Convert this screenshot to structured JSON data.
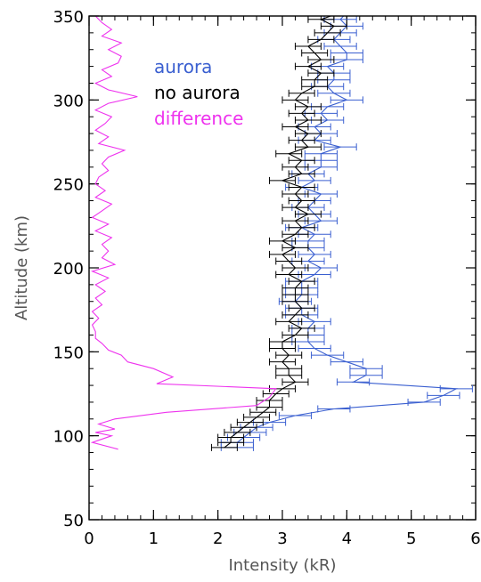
{
  "chart_data": {
    "type": "line",
    "xlabel": "Intensity (kR)",
    "ylabel": "Altitude (km)",
    "xlim": [
      0,
      6
    ],
    "ylim": [
      50,
      350
    ],
    "x_ticks": [
      0,
      1,
      2,
      3,
      4,
      5,
      6
    ],
    "y_ticks": [
      50,
      100,
      150,
      200,
      250,
      300,
      350
    ],
    "x_minor_step": 0.2,
    "y_minor_step": 10,
    "grid": false,
    "legend_position": "top-left",
    "legend": [
      {
        "label": "aurora",
        "color": "#3a5fd0"
      },
      {
        "label": "no aurora",
        "color": "#000000"
      },
      {
        "label": "difference",
        "color": "#ee33ee"
      }
    ],
    "series": [
      {
        "name": "aurora",
        "color": "#3a5fd0",
        "x_error": 0.25,
        "points": [
          [
            2.3,
            93
          ],
          [
            2.3,
            96
          ],
          [
            2.4,
            99
          ],
          [
            2.5,
            102
          ],
          [
            2.6,
            105
          ],
          [
            2.8,
            108
          ],
          [
            3.2,
            112
          ],
          [
            3.8,
            116
          ],
          [
            5.2,
            120
          ],
          [
            5.5,
            124
          ],
          [
            5.7,
            128
          ],
          [
            4.1,
            132
          ],
          [
            4.3,
            136
          ],
          [
            4.3,
            140
          ],
          [
            4.0,
            144
          ],
          [
            3.7,
            148
          ],
          [
            3.5,
            152
          ],
          [
            3.4,
            156
          ],
          [
            3.4,
            160
          ],
          [
            3.4,
            164
          ],
          [
            3.5,
            168
          ],
          [
            3.3,
            172
          ],
          [
            3.3,
            176
          ],
          [
            3.2,
            180
          ],
          [
            3.3,
            184
          ],
          [
            3.3,
            188
          ],
          [
            3.3,
            192
          ],
          [
            3.5,
            196
          ],
          [
            3.6,
            200
          ],
          [
            3.4,
            204
          ],
          [
            3.5,
            208
          ],
          [
            3.4,
            212
          ],
          [
            3.4,
            216
          ],
          [
            3.5,
            220
          ],
          [
            3.3,
            224
          ],
          [
            3.6,
            228
          ],
          [
            3.5,
            232
          ],
          [
            3.4,
            236
          ],
          [
            3.5,
            240
          ],
          [
            3.6,
            244
          ],
          [
            3.3,
            248
          ],
          [
            3.5,
            252
          ],
          [
            3.4,
            256
          ],
          [
            3.6,
            260
          ],
          [
            3.6,
            264
          ],
          [
            3.6,
            268
          ],
          [
            3.9,
            272
          ],
          [
            3.5,
            276
          ],
          [
            3.6,
            280
          ],
          [
            3.5,
            284
          ],
          [
            3.7,
            288
          ],
          [
            3.6,
            292
          ],
          [
            3.7,
            296
          ],
          [
            4.0,
            300
          ],
          [
            3.8,
            304
          ],
          [
            3.7,
            308
          ],
          [
            3.8,
            312
          ],
          [
            3.8,
            316
          ],
          [
            3.7,
            320
          ],
          [
            4.0,
            324
          ],
          [
            4.0,
            328
          ],
          [
            3.9,
            332
          ],
          [
            3.8,
            336
          ],
          [
            3.9,
            340
          ],
          [
            4.0,
            344
          ],
          [
            3.9,
            348
          ],
          [
            4.0,
            352
          ]
        ]
      },
      {
        "name": "no aurora",
        "color": "#000000",
        "x_error": 0.2,
        "points": [
          [
            2.1,
            93
          ],
          [
            2.2,
            96
          ],
          [
            2.2,
            99
          ],
          [
            2.3,
            102
          ],
          [
            2.4,
            105
          ],
          [
            2.5,
            108
          ],
          [
            2.6,
            111
          ],
          [
            2.7,
            114
          ],
          [
            2.8,
            117
          ],
          [
            2.8,
            121
          ],
          [
            2.9,
            125
          ],
          [
            3.0,
            128
          ],
          [
            3.2,
            132
          ],
          [
            3.1,
            136
          ],
          [
            3.1,
            140
          ],
          [
            3.0,
            144
          ],
          [
            3.1,
            148
          ],
          [
            3.0,
            152
          ],
          [
            3.0,
            156
          ],
          [
            3.2,
            160
          ],
          [
            3.3,
            164
          ],
          [
            3.1,
            168
          ],
          [
            3.2,
            172
          ],
          [
            3.3,
            176
          ],
          [
            3.2,
            180
          ],
          [
            3.2,
            184
          ],
          [
            3.2,
            188
          ],
          [
            3.3,
            192
          ],
          [
            3.1,
            196
          ],
          [
            3.2,
            200
          ],
          [
            3.1,
            204
          ],
          [
            3.0,
            208
          ],
          [
            3.2,
            212
          ],
          [
            3.0,
            216
          ],
          [
            3.2,
            220
          ],
          [
            3.3,
            224
          ],
          [
            3.2,
            228
          ],
          [
            3.4,
            232
          ],
          [
            3.2,
            236
          ],
          [
            3.3,
            240
          ],
          [
            3.2,
            244
          ],
          [
            3.3,
            248
          ],
          [
            3.0,
            252
          ],
          [
            3.3,
            256
          ],
          [
            3.2,
            260
          ],
          [
            3.3,
            264
          ],
          [
            3.1,
            268
          ],
          [
            3.4,
            272
          ],
          [
            3.3,
            276
          ],
          [
            3.4,
            280
          ],
          [
            3.2,
            284
          ],
          [
            3.4,
            288
          ],
          [
            3.3,
            292
          ],
          [
            3.4,
            296
          ],
          [
            3.2,
            300
          ],
          [
            3.3,
            304
          ],
          [
            3.5,
            308
          ],
          [
            3.5,
            312
          ],
          [
            3.6,
            316
          ],
          [
            3.4,
            320
          ],
          [
            3.6,
            324
          ],
          [
            3.5,
            328
          ],
          [
            3.4,
            332
          ],
          [
            3.6,
            336
          ],
          [
            3.7,
            340
          ],
          [
            3.8,
            344
          ],
          [
            3.6,
            348
          ],
          [
            3.9,
            352
          ]
        ]
      },
      {
        "name": "difference",
        "color": "#ee33ee",
        "points": [
          [
            0.45,
            92
          ],
          [
            0.05,
            96
          ],
          [
            0.35,
            100
          ],
          [
            0.1,
            102
          ],
          [
            0.4,
            104
          ],
          [
            0.15,
            107
          ],
          [
            0.4,
            110
          ],
          [
            1.2,
            114
          ],
          [
            2.6,
            118
          ],
          [
            2.8,
            123
          ],
          [
            2.9,
            128
          ],
          [
            1.05,
            131
          ],
          [
            1.3,
            135
          ],
          [
            1.0,
            140
          ],
          [
            0.6,
            144
          ],
          [
            0.5,
            148
          ],
          [
            0.3,
            151
          ],
          [
            0.2,
            155
          ],
          [
            0.1,
            158
          ],
          [
            0.1,
            162
          ],
          [
            0.05,
            166
          ],
          [
            0.15,
            170
          ],
          [
            0.05,
            174
          ],
          [
            0.2,
            178
          ],
          [
            0.1,
            182
          ],
          [
            0.25,
            186
          ],
          [
            0.1,
            190
          ],
          [
            0.3,
            194
          ],
          [
            0.05,
            198
          ],
          [
            0.4,
            202
          ],
          [
            0.2,
            206
          ],
          [
            0.3,
            210
          ],
          [
            0.2,
            214
          ],
          [
            0.35,
            218
          ],
          [
            0.1,
            222
          ],
          [
            0.3,
            226
          ],
          [
            0.05,
            230
          ],
          [
            0.2,
            234
          ],
          [
            0.35,
            238
          ],
          [
            0.1,
            242
          ],
          [
            0.25,
            246
          ],
          [
            0.1,
            250
          ],
          [
            0.15,
            254
          ],
          [
            0.3,
            258
          ],
          [
            0.2,
            262
          ],
          [
            0.3,
            266
          ],
          [
            0.55,
            270
          ],
          [
            0.15,
            274
          ],
          [
            0.3,
            278
          ],
          [
            0.1,
            282
          ],
          [
            0.25,
            286
          ],
          [
            0.35,
            290
          ],
          [
            0.1,
            294
          ],
          [
            0.3,
            298
          ],
          [
            0.75,
            302
          ],
          [
            0.3,
            306
          ],
          [
            0.1,
            310
          ],
          [
            0.35,
            314
          ],
          [
            0.2,
            318
          ],
          [
            0.45,
            322
          ],
          [
            0.5,
            326
          ],
          [
            0.3,
            330
          ],
          [
            0.5,
            334
          ],
          [
            0.2,
            338
          ],
          [
            0.35,
            342
          ],
          [
            0.2,
            346
          ],
          [
            0.1,
            350
          ]
        ]
      }
    ]
  }
}
